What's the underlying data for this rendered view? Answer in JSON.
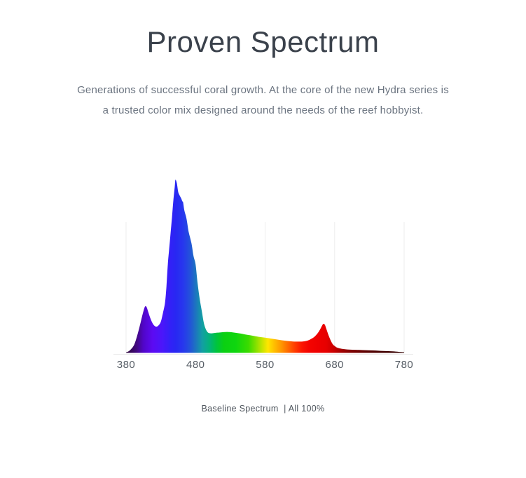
{
  "header": {
    "title": "Proven Spectrum",
    "subtitle_line1": "Generations of successful coral growth. At the core of the new Hydra series is",
    "subtitle_line2": "a trusted color mix designed around the needs of the reef hobbyist."
  },
  "chart": {
    "caption": "Baseline Spectrum  | All 100%"
  },
  "colors": {
    "title": "#3a414b",
    "subtitle": "#6b7480",
    "tick": "#575e66",
    "caption": "#4e555d",
    "gridline": "#ededed",
    "axis-line": "#eaeaea"
  },
  "chart_data": {
    "type": "area",
    "title": "",
    "xlabel": "",
    "ylabel": "",
    "xlim": [
      380,
      780
    ],
    "ylim": [
      0,
      100
    ],
    "x_tick_labels": [
      "380",
      "480",
      "580",
      "680",
      "780"
    ],
    "gridlines_nm": [
      380,
      580,
      680,
      780
    ],
    "grid": "vertical-light",
    "legend": "none",
    "series": [
      {
        "name": "Baseline Spectrum | All 100%",
        "x": [
          380,
          384,
          388,
          392,
          396,
          400,
          403,
          406,
          408,
          410,
          412,
          415,
          418,
          421,
          424,
          427,
          430,
          433,
          436,
          438,
          440,
          442,
          444,
          446,
          448,
          450,
          451,
          453,
          455,
          457,
          459,
          461,
          462,
          464,
          467,
          470,
          474,
          477,
          480,
          483,
          486,
          489,
          492,
          495,
          498,
          502,
          506,
          510,
          515,
          520,
          525,
          530,
          537,
          544,
          551,
          558,
          565,
          572,
          580,
          588,
          596,
          604,
          612,
          620,
          628,
          634,
          640,
          645,
          650,
          655,
          659,
          662,
          664,
          666,
          668,
          671,
          674,
          677,
          680,
          684,
          690,
          698,
          708,
          720,
          735,
          750,
          763,
          772,
          780
        ],
        "values": [
          0.3,
          1,
          2.5,
          5,
          10,
          16,
          21,
          25.5,
          27,
          26,
          23.5,
          20,
          17.2,
          15.6,
          15.2,
          16,
          18,
          23,
          29,
          38,
          51,
          60,
          69,
          78,
          88,
          96,
          100,
          98,
          93,
          91,
          89.5,
          87.5,
          87,
          82,
          77.5,
          70,
          63.5,
          56,
          51,
          40,
          31,
          24,
          17,
          13.5,
          11.7,
          11.3,
          11.4,
          11.6,
          11.8,
          12,
          12.1,
          12,
          11.6,
          11.2,
          10.7,
          10.2,
          9.7,
          9.2,
          8.8,
          8.3,
          7.8,
          7.3,
          6.9,
          6.6,
          6.5,
          6.6,
          7,
          7.8,
          9,
          11,
          13.5,
          15.8,
          16.8,
          16.2,
          14,
          10.5,
          7.5,
          5.2,
          4,
          3,
          2.4,
          2,
          1.8,
          1.6,
          1.4,
          1.1,
          0.9,
          0.6,
          0.4
        ]
      }
    ],
    "spectrum_gradient": [
      {
        "wl": 380,
        "color": "#2b0638"
      },
      {
        "wl": 395,
        "color": "#41087e"
      },
      {
        "wl": 405,
        "color": "#5106c9"
      },
      {
        "wl": 418,
        "color": "#5c0af2"
      },
      {
        "wl": 432,
        "color": "#4b16fa"
      },
      {
        "wl": 443,
        "color": "#3320f7"
      },
      {
        "wl": 452,
        "color": "#2828f2"
      },
      {
        "wl": 462,
        "color": "#2737ee"
      },
      {
        "wl": 471,
        "color": "#234fdc"
      },
      {
        "wl": 480,
        "color": "#1d74c0"
      },
      {
        "wl": 490,
        "color": "#12a0a2"
      },
      {
        "wl": 500,
        "color": "#04b37b"
      },
      {
        "wl": 510,
        "color": "#00c43e"
      },
      {
        "wl": 521,
        "color": "#0bd012"
      },
      {
        "wl": 538,
        "color": "#0fd60f"
      },
      {
        "wl": 556,
        "color": "#3bdb00"
      },
      {
        "wl": 566,
        "color": "#7fe000"
      },
      {
        "wl": 576,
        "color": "#c8e400"
      },
      {
        "wl": 584,
        "color": "#ffe600"
      },
      {
        "wl": 593,
        "color": "#ffbf00"
      },
      {
        "wl": 603,
        "color": "#ff9800"
      },
      {
        "wl": 613,
        "color": "#ff6a00"
      },
      {
        "wl": 623,
        "color": "#ff3c00"
      },
      {
        "wl": 633,
        "color": "#fb1500"
      },
      {
        "wl": 643,
        "color": "#f40400"
      },
      {
        "wl": 656,
        "color": "#ee0000"
      },
      {
        "wl": 668,
        "color": "#e60000"
      },
      {
        "wl": 678,
        "color": "#cc0000"
      },
      {
        "wl": 690,
        "color": "#a30000"
      },
      {
        "wl": 705,
        "color": "#7d0000"
      },
      {
        "wl": 725,
        "color": "#5c0000"
      },
      {
        "wl": 745,
        "color": "#470000"
      },
      {
        "wl": 765,
        "color": "#3a0000"
      },
      {
        "wl": 780,
        "color": "#330000"
      }
    ]
  }
}
